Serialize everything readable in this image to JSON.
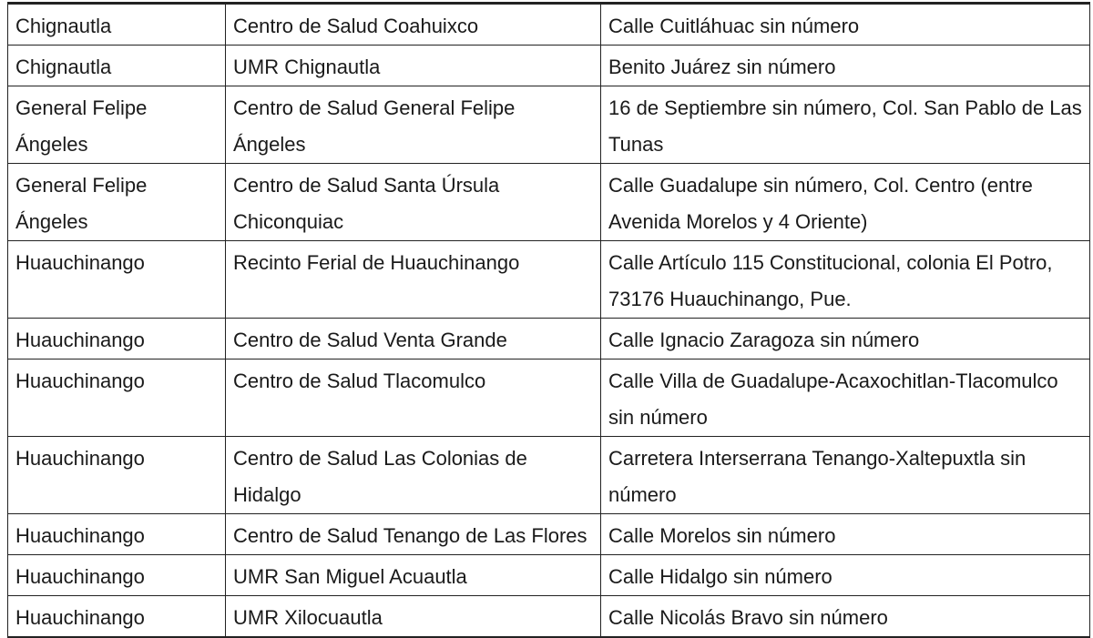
{
  "table": {
    "rows": [
      [
        "Chignautla",
        "Centro de Salud Coahuixco",
        "Calle Cuitláhuac sin número"
      ],
      [
        "Chignautla",
        "UMR Chignautla",
        "Benito Juárez sin número"
      ],
      [
        "General Felipe Ángeles",
        "Centro de Salud General Felipe Ángeles",
        "16 de Septiembre sin número, Col. San Pablo de Las Tunas"
      ],
      [
        "General Felipe Ángeles",
        "Centro de Salud Santa Úrsula Chiconquiac",
        "Calle Guadalupe sin número, Col. Centro (entre Avenida Morelos y 4 Oriente)"
      ],
      [
        "Huauchinango",
        "Recinto Ferial de Huauchinango",
        "Calle Artículo 115 Constitucional, colonia El Potro, 73176 Huauchinango, Pue."
      ],
      [
        "Huauchinango",
        "Centro de Salud Venta Grande",
        "Calle Ignacio Zaragoza sin número"
      ],
      [
        "Huauchinango",
        "Centro de Salud Tlacomulco",
        "Calle Villa de Guadalupe-Acaxochitlan-Tlacomulco sin número"
      ],
      [
        "Huauchinango",
        "Centro de Salud Las Colonias de Hidalgo",
        "Carretera Interserrana Tenango-Xaltepuxtla sin número"
      ],
      [
        "Huauchinango",
        "Centro de Salud Tenango de Las Flores",
        "Calle Morelos sin número"
      ],
      [
        "Huauchinango",
        "UMR San Miguel Acuautla",
        "Calle Hidalgo sin número"
      ],
      [
        "Huauchinango",
        "UMR Xilocuautla",
        "Calle Nicolás Bravo sin número"
      ]
    ]
  }
}
